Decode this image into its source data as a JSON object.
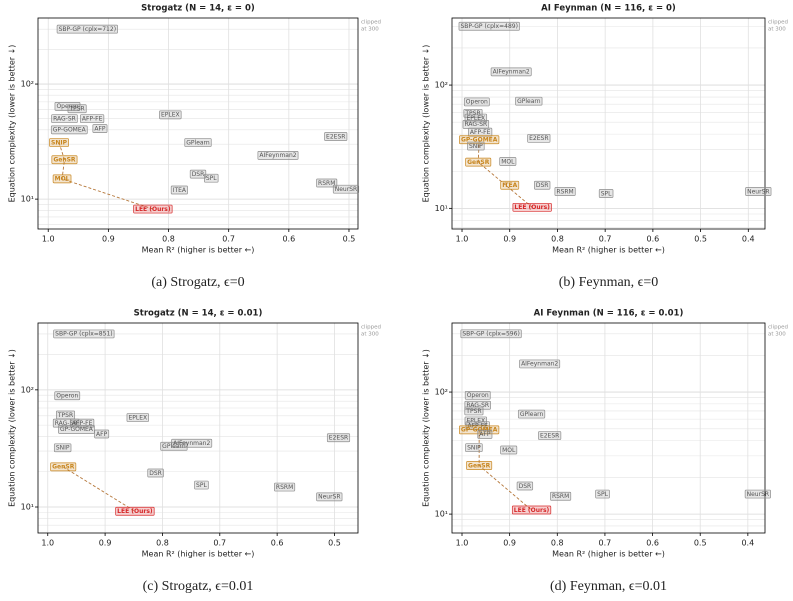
{
  "chart_data": [
    {
      "type": "scatter",
      "title": "Strogatz  (N = 14,  ε = 0)",
      "caption": "(a) Strogatz, ϵ=0",
      "xlabel": "Mean R² (higher is better ←)",
      "ylabel": "Equation complexity (lower is better ↓)",
      "log_y": true,
      "grid": true,
      "xlim": [
        1.017,
        0.485
      ],
      "ylim": [
        5.5,
        375
      ],
      "xticks": [
        {
          "value": 1,
          "label": "1.0"
        },
        0.9,
        0.8,
        0.7,
        0.6,
        0.5
      ],
      "yticks": [
        {
          "value": 10,
          "label": "10¹"
        },
        {
          "value": 100,
          "label": "10²"
        }
      ],
      "yminor": [
        6,
        7,
        8,
        9,
        20,
        30,
        40,
        50,
        60,
        70,
        80,
        90,
        200,
        300
      ],
      "annotation": [
        "clipped",
        "at 300"
      ],
      "labels": [
        "SBP-GP (cplx=712)",
        "Operon",
        "TPSR",
        "RAG-SR",
        "AFP-FE",
        "GP-GOMEA",
        "AFP",
        "EPLEX",
        "SNIP",
        "GenSR",
        "MOL",
        "LEE (Ours)",
        "GPlearn",
        "E2ESR",
        "AIFeynman2",
        "DSR",
        "SPL",
        "ITEA",
        "RSRM",
        "NeurSR"
      ],
      "x": [
        0.935,
        0.968,
        0.952,
        0.973,
        0.927,
        0.965,
        0.914,
        0.797,
        0.982,
        0.973,
        0.977,
        0.826,
        0.751,
        0.522,
        0.618,
        0.751,
        0.729,
        0.782,
        0.537,
        0.505
      ],
      "y": [
        300,
        64,
        61,
        50,
        50,
        40,
        41,
        54,
        31,
        22,
        15,
        8.2,
        31,
        35,
        24,
        16.5,
        15.2,
        12,
        13.8,
        12.2
      ],
      "colors": [
        "#8c8c8c",
        "#8c8c8c",
        "#8c8c8c",
        "#8c8c8c",
        "#8c8c8c",
        "#8c8c8c",
        "#8c8c8c",
        "#8c8c8c",
        "#c8861e",
        "#c8861e",
        "#c8861e",
        "#d62728",
        "#8c8c8c",
        "#8c8c8c",
        "#8c8c8c",
        "#8c8c8c",
        "#8c8c8c",
        "#8c8c8c",
        "#8c8c8c",
        "#8c8c8c"
      ],
      "pareto_front": [
        8,
        9,
        10,
        11
      ]
    },
    {
      "type": "scatter",
      "title": "AI Feynman  (N = 116,  ε = 0)",
      "caption": "(b) Feynman, ϵ=0",
      "xlabel": "Mean R² (higher is better ←)",
      "ylabel": "Equation complexity (lower is better ↓)",
      "log_y": true,
      "grid": true,
      "xlim": [
        1.021,
        0.365
      ],
      "ylim": [
        6.8,
        350
      ],
      "xticks": [
        {
          "value": 1,
          "label": "1.0"
        },
        0.9,
        0.8,
        0.7,
        0.6,
        0.5,
        0.4
      ],
      "yticks": [
        {
          "value": 10,
          "label": "10¹"
        },
        {
          "value": 100,
          "label": "10²"
        }
      ],
      "yminor": [
        7,
        8,
        9,
        20,
        30,
        40,
        50,
        60,
        70,
        80,
        90,
        200,
        300
      ],
      "annotation": [
        "clipped",
        "at 300"
      ],
      "labels": [
        "SBP-GP (cplx=489)",
        "AIFeynman2",
        "Operon",
        "GPlearn",
        "TPSR",
        "EPLEX",
        "RAG-SR",
        "AFP-FE",
        "GP-GOMEA",
        "E2ESR",
        "SNIP",
        "GenSR",
        "MOL",
        "ITEA",
        "DSR",
        "RSRM",
        "SPL",
        "NeurSR",
        "LEE (Ours)"
      ],
      "x": [
        0.943,
        0.897,
        0.969,
        0.86,
        0.977,
        0.971,
        0.971,
        0.962,
        0.964,
        0.839,
        0.971,
        0.966,
        0.904,
        0.9,
        0.832,
        0.784,
        0.698,
        0.379,
        0.853
      ],
      "y": [
        300,
        128,
        73,
        74,
        59,
        54,
        48,
        41.5,
        36,
        37,
        32,
        23.7,
        24,
        15.4,
        15.4,
        13.7,
        13.2,
        13.7,
        10.2
      ],
      "colors": [
        "#8c8c8c",
        "#8c8c8c",
        "#8c8c8c",
        "#8c8c8c",
        "#8c8c8c",
        "#8c8c8c",
        "#8c8c8c",
        "#8c8c8c",
        "#c8861e",
        "#8c8c8c",
        "#8c8c8c",
        "#c8861e",
        "#8c8c8c",
        "#c8861e",
        "#8c8c8c",
        "#8c8c8c",
        "#8c8c8c",
        "#8c8c8c",
        "#d62728"
      ],
      "pareto_front": [
        8,
        11,
        18
      ]
    },
    {
      "type": "scatter",
      "title": "Strogatz  (N = 14,  ε = 0.01)",
      "caption": "(c) Strogatz, ϵ=0.01",
      "xlabel": "Mean R² (higher is better ←)",
      "ylabel": "Equation complexity (lower is better ↓)",
      "log_y": true,
      "grid": true,
      "xlim": [
        1.017,
        0.459
      ],
      "ylim": [
        6.0,
        372
      ],
      "xticks": [
        {
          "value": 1,
          "label": "1.0"
        },
        0.9,
        0.8,
        0.7,
        0.6,
        0.5
      ],
      "yticks": [
        {
          "value": 10,
          "label": "10¹"
        },
        {
          "value": 100,
          "label": "10²"
        }
      ],
      "yminor": [
        7,
        8,
        9,
        20,
        30,
        40,
        50,
        60,
        70,
        80,
        90,
        200,
        300
      ],
      "annotation": [
        "clipped",
        "at 300"
      ],
      "labels": [
        "SBP-GP (cplx=851)",
        "Operon",
        "TPSR",
        "RAG-SR",
        "AFP-FE",
        "GP-GOMEA",
        "EPLEX",
        "AFP",
        "SNIP",
        "GPlearn",
        "AIFeynman2",
        "E2ESR",
        "GenSR",
        "DSR",
        "SPL",
        "RSRM",
        "NeurSR",
        "LEE (Ours)"
      ],
      "x": [
        0.937,
        0.966,
        0.969,
        0.968,
        0.94,
        0.95,
        0.843,
        0.906,
        0.974,
        0.78,
        0.749,
        0.493,
        0.973,
        0.812,
        0.732,
        0.587,
        0.509,
        0.848
      ],
      "y": [
        300,
        89,
        61,
        52,
        52,
        46,
        58,
        42,
        32,
        33,
        35,
        39,
        22,
        19.5,
        15.4,
        14.8,
        12.2,
        9.2
      ],
      "colors": [
        "#8c8c8c",
        "#8c8c8c",
        "#8c8c8c",
        "#8c8c8c",
        "#8c8c8c",
        "#8c8c8c",
        "#8c8c8c",
        "#8c8c8c",
        "#8c8c8c",
        "#8c8c8c",
        "#8c8c8c",
        "#8c8c8c",
        "#c8861e",
        "#8c8c8c",
        "#8c8c8c",
        "#8c8c8c",
        "#8c8c8c",
        "#d62728"
      ],
      "pareto_front": [
        12,
        17
      ]
    },
    {
      "type": "scatter",
      "title": "AI Feynman  (N = 116,  ε = 0.01)",
      "caption": "(d) Feynman, ϵ=0.01",
      "xlabel": "Mean R² (higher is better ←)",
      "ylabel": "Equation complexity (lower is better ↓)",
      "log_y": true,
      "grid": true,
      "xlim": [
        1.021,
        0.364
      ],
      "ylim": [
        7.0,
        368
      ],
      "xticks": [
        {
          "value": 1,
          "label": "1.0"
        },
        0.9,
        0.8,
        0.7,
        0.6,
        0.5,
        0.4
      ],
      "yticks": [
        {
          "value": 10,
          "label": "10¹"
        },
        {
          "value": 100,
          "label": "10²"
        }
      ],
      "yminor": [
        8,
        9,
        20,
        30,
        40,
        50,
        60,
        70,
        80,
        90,
        200,
        300
      ],
      "annotation": [
        "clipped",
        "at 300"
      ],
      "labels": [
        "SBP-GP (cplx=596)",
        "AIFeynman2",
        "Operon",
        "RAG-SR",
        "TPSR",
        "GPlearn",
        "EPLEX",
        "AFP-FE",
        "GP-GOMEA",
        "AFP",
        "E2ESR",
        "SNIP",
        "MOL",
        "GenSR",
        "DSR",
        "RSRM",
        "SPL",
        "NeurSR",
        "LEE (Ours)"
      ],
      "x": [
        0.939,
        0.837,
        0.967,
        0.967,
        0.975,
        0.854,
        0.971,
        0.967,
        0.964,
        0.952,
        0.816,
        0.975,
        0.902,
        0.964,
        0.868,
        0.793,
        0.705,
        0.379,
        0.854
      ],
      "y": [
        300,
        170,
        94,
        78,
        70,
        66,
        58,
        53,
        49,
        45,
        44,
        35,
        33.5,
        25,
        17,
        14,
        14.6,
        14.6,
        10.8
      ],
      "colors": [
        "#8c8c8c",
        "#8c8c8c",
        "#8c8c8c",
        "#8c8c8c",
        "#8c8c8c",
        "#8c8c8c",
        "#8c8c8c",
        "#8c8c8c",
        "#c8861e",
        "#8c8c8c",
        "#8c8c8c",
        "#8c8c8c",
        "#8c8c8c",
        "#c8861e",
        "#8c8c8c",
        "#8c8c8c",
        "#8c8c8c",
        "#8c8c8c",
        "#d62728"
      ],
      "pareto_front": [
        8,
        13,
        18
      ]
    }
  ]
}
